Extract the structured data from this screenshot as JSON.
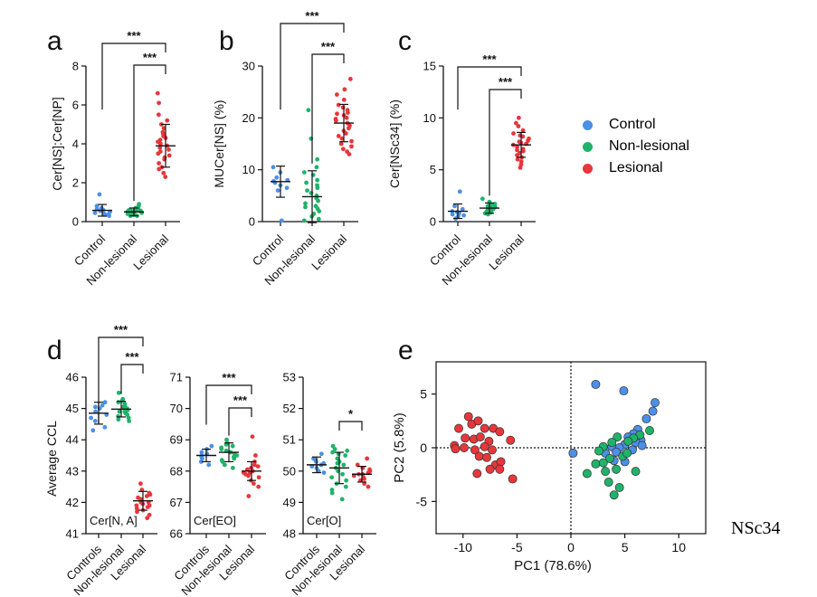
{
  "colors": {
    "Control": "#4c8fe8",
    "Non-lesional": "#1fb36a",
    "Lesional": "#e8363b"
  },
  "legend": [
    {
      "label": "Control",
      "color": "#4c8fe8"
    },
    {
      "label": "Non-lesional",
      "color": "#1fb36a"
    },
    {
      "label": "Lesional",
      "color": "#e8363b"
    }
  ],
  "footnote": "NSc34",
  "chart_data": [
    {
      "id": "a",
      "letter": "a",
      "type": "scatter-strip",
      "ylabel": "Cer[NS]:Cer[NP]",
      "ylim": [
        0,
        8
      ],
      "yticks": [
        "0",
        "2",
        "4",
        "6",
        "8"
      ],
      "categories": [
        "Control",
        "Non-lesional",
        "Lesional"
      ],
      "series": [
        {
          "name": "Control",
          "mean": 0.58,
          "sd": 0.3,
          "values": [
            0.3,
            0.45,
            0.6,
            0.55,
            0.7,
            0.4,
            0.8,
            1.4,
            0.6,
            0.5,
            0.35,
            0.65
          ]
        },
        {
          "name": "Non-lesional",
          "mean": 0.5,
          "sd": 0.2,
          "values": [
            0.3,
            0.4,
            0.5,
            0.6,
            0.45,
            0.55,
            0.35,
            0.65,
            0.7,
            0.5,
            0.4,
            0.6,
            0.3,
            0.8,
            0.45,
            0.5,
            0.55,
            0.4,
            0.6,
            0.5,
            0.9,
            0.35,
            0.45,
            0.55
          ]
        },
        {
          "name": "Lesional",
          "mean": 3.9,
          "sd": 1.1,
          "values": [
            6.6,
            6.1,
            5.5,
            5.2,
            5.0,
            4.8,
            4.6,
            4.4,
            4.3,
            4.2,
            4.1,
            4.0,
            3.9,
            3.8,
            3.7,
            3.6,
            3.5,
            3.4,
            3.2,
            3.0,
            2.8,
            2.7,
            2.5,
            2.3,
            4.5,
            3.3
          ]
        }
      ],
      "significance": [
        {
          "from": 0,
          "to": 2,
          "label": "***"
        },
        {
          "from": 1,
          "to": 2,
          "label": "***"
        }
      ]
    },
    {
      "id": "b",
      "letter": "b",
      "type": "scatter-strip",
      "ylabel": "MUCer[NS]  (%)",
      "ylim": [
        0,
        30
      ],
      "yticks": [
        "0",
        "10",
        "20",
        "30"
      ],
      "categories": [
        "Control",
        "Non-lesional",
        "Lesional"
      ],
      "series": [
        {
          "name": "Control",
          "mean": 7.7,
          "sd": 3.0,
          "values": [
            10.5,
            9.5,
            8.5,
            8.0,
            7.8,
            7.5,
            7.0,
            6.5,
            6.0,
            0.2
          ]
        },
        {
          "name": "Non-lesional",
          "mean": 4.8,
          "sd": 5.0,
          "values": [
            21.5,
            16,
            12,
            10.5,
            9.5,
            9,
            8,
            7.5,
            7,
            6.5,
            6,
            5.5,
            5,
            4.5,
            4,
            3.5,
            3,
            2.5,
            2,
            1.5,
            1,
            0.5,
            0.2,
            2.8
          ]
        },
        {
          "name": "Lesional",
          "mean": 19.0,
          "sd": 3.6,
          "values": [
            27.5,
            25.5,
            24.5,
            23.5,
            22.5,
            22,
            21.5,
            21,
            20.5,
            20,
            19.5,
            19,
            18.5,
            18,
            17.5,
            17,
            16.5,
            16,
            15.5,
            15,
            14.5,
            14,
            13.5,
            13,
            19.8,
            20.8
          ]
        }
      ],
      "significance": [
        {
          "from": 0,
          "to": 2,
          "label": "***"
        },
        {
          "from": 1,
          "to": 2,
          "label": "***"
        }
      ]
    },
    {
      "id": "c",
      "letter": "c",
      "type": "scatter-strip",
      "ylabel": "Cer[NSc34]  (%)",
      "ylim": [
        0,
        15
      ],
      "yticks": [
        "0",
        "5",
        "10",
        "15"
      ],
      "categories": [
        "Control",
        "Non-lesional",
        "Lesional"
      ],
      "series": [
        {
          "name": "Control",
          "mean": 1.0,
          "sd": 0.7,
          "values": [
            2.9,
            1.5,
            1.2,
            1.0,
            0.9,
            0.8,
            0.7,
            0.5,
            0.3,
            0.6
          ]
        },
        {
          "name": "Non-lesional",
          "mean": 1.3,
          "sd": 0.5,
          "values": [
            2.2,
            1.9,
            1.7,
            1.5,
            1.4,
            1.3,
            1.2,
            1.1,
            1.0,
            0.9,
            0.8,
            0.7,
            1.6,
            1.3
          ]
        },
        {
          "name": "Lesional",
          "mean": 7.4,
          "sd": 1.2,
          "values": [
            10.0,
            9.5,
            9.2,
            8.8,
            8.5,
            8.2,
            8.0,
            7.8,
            7.6,
            7.4,
            7.2,
            7.0,
            6.8,
            6.6,
            6.4,
            6.2,
            6.0,
            5.8,
            5.5,
            5.2,
            7.5,
            8.3,
            6.9,
            7.7
          ]
        }
      ],
      "significance": [
        {
          "from": 0,
          "to": 2,
          "label": "***"
        },
        {
          "from": 1,
          "to": 2,
          "label": "***"
        }
      ]
    },
    {
      "id": "d1",
      "letter": "d",
      "type": "scatter-strip",
      "ylabel": "Average CCL",
      "inner_label": "Cer[N, A]",
      "ylim": [
        41,
        46
      ],
      "yticks": [
        "41",
        "42",
        "43",
        "44",
        "45",
        "46"
      ],
      "categories": [
        "Controls",
        "Non-lesional",
        "Lesional"
      ],
      "series": [
        {
          "name": "Control",
          "mean": 44.85,
          "sd": 0.35,
          "values": [
            45.2,
            45.1,
            45.0,
            44.9,
            44.8,
            44.7,
            44.6,
            44.4,
            44.3,
            45.05
          ]
        },
        {
          "name": "Non-lesional",
          "mean": 44.98,
          "sd": 0.25,
          "values": [
            45.5,
            45.3,
            45.2,
            45.15,
            45.1,
            45.05,
            45.0,
            44.95,
            44.9,
            44.85,
            44.8,
            44.75,
            44.7,
            44.65,
            44.6,
            45.25,
            44.95,
            45.0,
            44.9
          ]
        },
        {
          "name": "Lesional",
          "mean": 42.05,
          "sd": 0.3,
          "values": [
            42.6,
            42.4,
            42.3,
            42.2,
            42.15,
            42.1,
            42.05,
            42.0,
            41.95,
            41.9,
            41.85,
            41.8,
            41.75,
            41.7,
            41.6,
            41.5,
            42.25,
            42.0,
            41.9
          ]
        }
      ],
      "significance": [
        {
          "from": 0,
          "to": 2,
          "label": "***"
        },
        {
          "from": 1,
          "to": 2,
          "label": "***"
        }
      ]
    },
    {
      "id": "d2",
      "letter": "",
      "type": "scatter-strip",
      "ylabel": "",
      "inner_label": "Cer[EO]",
      "ylim": [
        66,
        71
      ],
      "yticks": [
        "66",
        "67",
        "68",
        "69",
        "70",
        "71"
      ],
      "categories": [
        "Controls",
        "Non-lesional",
        "Lesional"
      ],
      "series": [
        {
          "name": "Control",
          "mean": 68.5,
          "sd": 0.2,
          "values": [
            68.8,
            68.7,
            68.6,
            68.5,
            68.45,
            68.4,
            68.3,
            68.2,
            68.55
          ]
        },
        {
          "name": "Non-lesional",
          "mean": 68.6,
          "sd": 0.3,
          "values": [
            69.0,
            68.9,
            68.85,
            68.8,
            68.7,
            68.65,
            68.6,
            68.55,
            68.5,
            68.45,
            68.4,
            68.35,
            68.3,
            68.2,
            68.1,
            68.75,
            68.6
          ]
        },
        {
          "name": "Lesional",
          "mean": 68.0,
          "sd": 0.3,
          "values": [
            69.1,
            68.5,
            68.3,
            68.2,
            68.1,
            68.05,
            68.0,
            67.95,
            67.9,
            67.85,
            67.8,
            67.7,
            67.6,
            67.5,
            67.2,
            68.15,
            67.95
          ]
        }
      ],
      "significance": [
        {
          "from": 0,
          "to": 2,
          "label": "***"
        },
        {
          "from": 1,
          "to": 2,
          "label": "***"
        }
      ]
    },
    {
      "id": "d3",
      "letter": "",
      "type": "scatter-strip",
      "ylabel": "",
      "inner_label": "Cer[O]",
      "ylim": [
        48,
        53
      ],
      "yticks": [
        "48",
        "49",
        "50",
        "51",
        "52",
        "53"
      ],
      "categories": [
        "Controls",
        "Non-lesional",
        "Lesional"
      ],
      "series": [
        {
          "name": "Control",
          "mean": 50.2,
          "sd": 0.25,
          "values": [
            50.55,
            50.4,
            50.3,
            50.25,
            50.2,
            50.15,
            50.1,
            50.0,
            49.95,
            50.35
          ]
        },
        {
          "name": "Non-lesional",
          "mean": 50.1,
          "sd": 0.5,
          "values": [
            50.8,
            50.7,
            50.6,
            50.55,
            50.5,
            50.4,
            50.3,
            50.2,
            50.1,
            50.0,
            49.9,
            49.8,
            49.7,
            49.6,
            49.5,
            49.4,
            49.3,
            49.1,
            50.65,
            50.25
          ]
        },
        {
          "name": "Lesional",
          "mean": 49.9,
          "sd": 0.25,
          "values": [
            50.4,
            50.2,
            50.1,
            50.0,
            49.95,
            49.9,
            49.85,
            49.8,
            49.75,
            49.7,
            49.6,
            49.5,
            50.05,
            49.9
          ]
        }
      ],
      "significance": [
        {
          "from": 1,
          "to": 2,
          "label": "*"
        }
      ]
    },
    {
      "id": "e",
      "letter": "e",
      "type": "scatter",
      "xlabel": "PC1 (78.6%)",
      "ylabel": "PC2 (5.8%)",
      "xlim": [
        -12.5,
        12.5
      ],
      "ylim": [
        -8,
        8
      ],
      "xticks": [
        "-10",
        "-5",
        "0",
        "5",
        "10"
      ],
      "yticks": [
        "-5",
        "0",
        "5"
      ],
      "series": [
        {
          "name": "Control",
          "points": [
            [
              2.3,
              5.9
            ],
            [
              4.9,
              5.3
            ],
            [
              7.8,
              4.2
            ],
            [
              7.6,
              3.4
            ],
            [
              7.0,
              2.7
            ],
            [
              6.2,
              1.7
            ],
            [
              5.8,
              1.3
            ],
            [
              5.3,
              1.0
            ],
            [
              6.5,
              0.7
            ],
            [
              6.0,
              0.5
            ],
            [
              5.0,
              0.3
            ],
            [
              3.8,
              0.1
            ],
            [
              4.5,
              0.0
            ],
            [
              5.7,
              -0.2
            ],
            [
              6.6,
              0.2
            ],
            [
              4.2,
              -0.4
            ],
            [
              3.2,
              -0.5
            ],
            [
              0.2,
              -0.5
            ],
            [
              4.0,
              -1.2
            ],
            [
              5.0,
              -1.3
            ]
          ]
        },
        {
          "name": "Non-lesional",
          "points": [
            [
              7.3,
              1.6
            ],
            [
              6.4,
              1.2
            ],
            [
              5.8,
              0.9
            ],
            [
              4.3,
              1.0
            ],
            [
              5.3,
              0.6
            ],
            [
              3.8,
              0.5
            ],
            [
              3.0,
              0.1
            ],
            [
              2.6,
              -0.3
            ],
            [
              4.8,
              -0.8
            ],
            [
              3.6,
              -1.0
            ],
            [
              2.3,
              -1.5
            ],
            [
              1.5,
              -2.4
            ],
            [
              3.2,
              -2.2
            ],
            [
              4.2,
              -2.0
            ],
            [
              6.0,
              -2.2
            ],
            [
              3.5,
              -3.2
            ],
            [
              4.5,
              -3.7
            ],
            [
              4.0,
              -4.4
            ],
            [
              5.2,
              -0.5
            ],
            [
              3.0,
              -1.4
            ]
          ]
        },
        {
          "name": "Lesional",
          "points": [
            [
              -10.4,
              1.8
            ],
            [
              -9.5,
              2.9
            ],
            [
              -9.2,
              2.2
            ],
            [
              -8.6,
              2.5
            ],
            [
              -8.0,
              1.8
            ],
            [
              -7.2,
              1.8
            ],
            [
              -6.6,
              1.5
            ],
            [
              -9.8,
              0.9
            ],
            [
              -9.0,
              0.8
            ],
            [
              -8.4,
              1.0
            ],
            [
              -7.6,
              0.6
            ],
            [
              -10.8,
              0.2
            ],
            [
              -9.9,
              0.0
            ],
            [
              -8.9,
              -0.2
            ],
            [
              -8.0,
              0.1
            ],
            [
              -7.3,
              -0.2
            ],
            [
              -5.6,
              0.7
            ],
            [
              -8.5,
              -0.8
            ],
            [
              -7.8,
              -0.9
            ],
            [
              -7.0,
              -1.6
            ],
            [
              -6.5,
              -1.3
            ],
            [
              -7.5,
              -2.0
            ],
            [
              -6.6,
              -2.0
            ],
            [
              -8.7,
              -2.4
            ],
            [
              -5.4,
              -2.9
            ],
            [
              -10.7,
              -0.1
            ]
          ]
        }
      ]
    }
  ]
}
